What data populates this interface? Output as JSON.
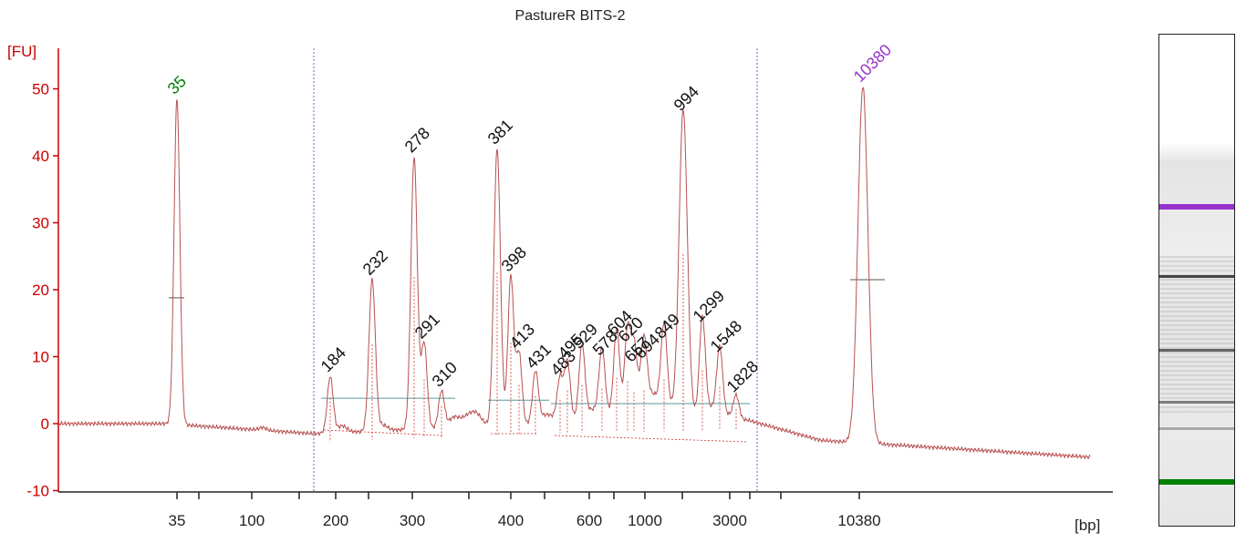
{
  "chart_data": {
    "type": "line",
    "title": "PastureR BITS-2",
    "ylabel": "[FU]",
    "xlabel": "[bp]",
    "ylim": [
      -10,
      55
    ],
    "yticks": [
      -10,
      0,
      10,
      20,
      30,
      40,
      50
    ],
    "xtick_labels": [
      "35",
      "",
      "100",
      "",
      "200",
      "",
      "300",
      "",
      "400",
      "",
      "600",
      "",
      "1000",
      "",
      "3000",
      "",
      "10380"
    ],
    "line_color": "#b85050",
    "axis_color": "#cc0000",
    "marker_color_lower": "#008000",
    "marker_color_upper": "#9933cc",
    "peaks": [
      {
        "label": "35",
        "height": 48.5,
        "marker": "lower"
      },
      {
        "label": "184",
        "height": 7.0
      },
      {
        "label": "232",
        "height": 21.5
      },
      {
        "label": "278",
        "height": 39.8
      },
      {
        "label": "291",
        "height": 12.0
      },
      {
        "label": "310",
        "height": 4.8
      },
      {
        "label": "381",
        "height": 41.0
      },
      {
        "label": "398",
        "height": 22.0
      },
      {
        "label": "413",
        "height": 10.5
      },
      {
        "label": "431",
        "height": 7.5
      },
      {
        "label": "483",
        "height": 6.5
      },
      {
        "label": "495",
        "height": 9.0
      },
      {
        "label": "529",
        "height": 10.5
      },
      {
        "label": "578",
        "height": 9.5
      },
      {
        "label": "604",
        "height": 12.5
      },
      {
        "label": "620",
        "height": 11.5
      },
      {
        "label": "657",
        "height": 8.5
      },
      {
        "label": "694",
        "height": 9.0
      },
      {
        "label": "849",
        "height": 12.0
      },
      {
        "label": "994",
        "height": 46.0
      },
      {
        "label": "1299",
        "height": 14.5
      },
      {
        "label": "1548",
        "height": 10.0
      },
      {
        "label": "1828",
        "height": 4.0
      },
      {
        "label": "10380",
        "height": 50.3,
        "marker": "upper"
      }
    ],
    "smear_regions": [
      {
        "from": "184",
        "to": "310",
        "level": 3.8
      },
      {
        "from": "381",
        "to": "431",
        "level": 3.5
      },
      {
        "from": "483",
        "to": "1828",
        "level": 3.0
      }
    ]
  },
  "gel": {
    "bands": [
      {
        "pos": 0.345,
        "color": "#9933cc",
        "strength": 1.0
      },
      {
        "pos": 0.49,
        "color": "#333333",
        "strength": 0.9
      },
      {
        "pos": 0.64,
        "color": "#444444",
        "strength": 0.8
      },
      {
        "pos": 0.745,
        "color": "#555555",
        "strength": 0.7
      },
      {
        "pos": 0.8,
        "color": "#666666",
        "strength": 0.5
      },
      {
        "pos": 0.905,
        "color": "#008000",
        "strength": 1.0
      }
    ]
  }
}
